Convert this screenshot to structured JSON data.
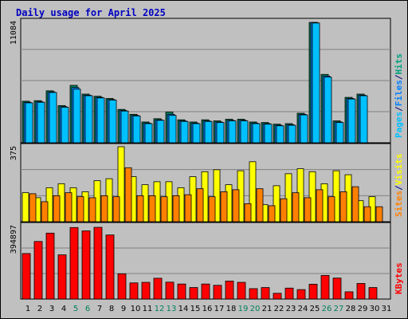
{
  "title": "Daily usage for April 2025",
  "chart_data": [
    {
      "type": "bar",
      "panel": "pages-files-hits",
      "ymax_label": "11084",
      "ylim": [
        0,
        11084
      ],
      "grid": true,
      "legend": [
        {
          "name": "Pages",
          "color": "#00c0ff"
        },
        {
          "name": "/",
          "color": "#000080"
        },
        {
          "name": "Files",
          "color": "#0080ff"
        },
        {
          "name": "/",
          "color": "#000080"
        },
        {
          "name": "Hits",
          "color": "#00a080"
        }
      ],
      "categories": [
        "1",
        "2",
        "3",
        "4",
        "5",
        "6",
        "7",
        "8",
        "9",
        "10",
        "11",
        "12",
        "13",
        "14",
        "15",
        "16",
        "17",
        "18",
        "19",
        "20",
        "21",
        "22",
        "23",
        "24",
        "25",
        "26",
        "27",
        "28",
        "29",
        "30",
        "31"
      ],
      "series": [
        {
          "name": "Hits",
          "color": "#00805c",
          "values": [
            3800,
            3850,
            4750,
            3400,
            5250,
            4450,
            4250,
            4050,
            3050,
            2600,
            1900,
            2200,
            2800,
            2100,
            1900,
            2100,
            2000,
            2150,
            2150,
            1900,
            1850,
            1700,
            1750,
            2700,
            11000,
            6250,
            2000,
            4150,
            4450,
            0,
            0
          ]
        },
        {
          "name": "Files",
          "color": "#0080ff",
          "values": [
            3700,
            3750,
            4650,
            3300,
            5050,
            4350,
            4150,
            3950,
            2950,
            2500,
            1800,
            2100,
            2600,
            2000,
            1800,
            2000,
            1900,
            2050,
            2050,
            1800,
            1750,
            1600,
            1650,
            2600,
            11000,
            6100,
            1900,
            4050,
            4350,
            0,
            0
          ]
        },
        {
          "name": "Pages",
          "color": "#00c0ff",
          "values": [
            3650,
            3700,
            4600,
            3250,
            4900,
            4300,
            4100,
            3900,
            2900,
            2450,
            1750,
            2050,
            2500,
            1950,
            1750,
            1950,
            1850,
            2000,
            2000,
            1750,
            1700,
            1550,
            1600,
            2550,
            10950,
            6000,
            1850,
            4000,
            4300,
            0,
            0
          ]
        }
      ]
    },
    {
      "type": "bar",
      "panel": "visits-sites",
      "ymax_label": "375",
      "ylim": [
        0,
        375
      ],
      "grid": true,
      "legend": [
        {
          "name": "Sites",
          "color": "#ff8000"
        },
        {
          "name": "/",
          "color": "#000080"
        },
        {
          "name": "Visits",
          "color": "#ffff00"
        }
      ],
      "categories": [
        "1",
        "2",
        "3",
        "4",
        "5",
        "6",
        "7",
        "8",
        "9",
        "10",
        "11",
        "12",
        "13",
        "14",
        "15",
        "16",
        "17",
        "18",
        "19",
        "20",
        "21",
        "22",
        "23",
        "24",
        "25",
        "26",
        "27",
        "28",
        "29",
        "30",
        "31"
      ],
      "series": [
        {
          "name": "Visits",
          "color": "#ffff00",
          "values": [
            145,
            120,
            170,
            190,
            170,
            150,
            205,
            215,
            375,
            225,
            185,
            200,
            200,
            170,
            225,
            250,
            260,
            185,
            255,
            300,
            85,
            180,
            240,
            265,
            250,
            190,
            255,
            235,
            105,
            125,
            0
          ]
        },
        {
          "name": "Sites",
          "color": "#ff8000",
          "values": [
            140,
            100,
            130,
            145,
            125,
            120,
            130,
            125,
            270,
            130,
            130,
            125,
            130,
            135,
            165,
            125,
            150,
            160,
            90,
            165,
            80,
            115,
            145,
            120,
            160,
            125,
            150,
            175,
            75,
            75,
            0
          ]
        }
      ]
    },
    {
      "type": "bar",
      "panel": "kbytes",
      "ymax_label": "394897",
      "ylim": [
        0,
        394897
      ],
      "grid": true,
      "legend": [
        {
          "name": "KBytes",
          "color": "#ff0000"
        }
      ],
      "categories": [
        "1",
        "2",
        "3",
        "4",
        "5",
        "6",
        "7",
        "8",
        "9",
        "10",
        "11",
        "12",
        "13",
        "14",
        "15",
        "16",
        "17",
        "18",
        "19",
        "20",
        "21",
        "22",
        "23",
        "24",
        "25",
        "26",
        "27",
        "28",
        "29",
        "30",
        "31"
      ],
      "series": [
        {
          "name": "KBytes",
          "color": "#ff0000",
          "values": [
            245000,
            310000,
            355000,
            238000,
            385000,
            367000,
            386000,
            345000,
            136000,
            87000,
            90000,
            112000,
            91000,
            81000,
            62000,
            81000,
            74000,
            97000,
            90000,
            56000,
            62000,
            31000,
            59000,
            51000,
            80000,
            127000,
            113000,
            39000,
            84000,
            62000,
            0
          ]
        }
      ]
    }
  ],
  "x_labels": [
    {
      "text": "1",
      "color": "#000000"
    },
    {
      "text": "2",
      "color": "#000000"
    },
    {
      "text": "3",
      "color": "#000000"
    },
    {
      "text": "4",
      "color": "#000000"
    },
    {
      "text": "5",
      "color": "#00805c"
    },
    {
      "text": "6",
      "color": "#00805c"
    },
    {
      "text": "7",
      "color": "#000000"
    },
    {
      "text": "8",
      "color": "#000000"
    },
    {
      "text": "9",
      "color": "#000000"
    },
    {
      "text": "10",
      "color": "#000000"
    },
    {
      "text": "11",
      "color": "#000000"
    },
    {
      "text": "12",
      "color": "#00805c"
    },
    {
      "text": "13",
      "color": "#00805c"
    },
    {
      "text": "14",
      "color": "#000000"
    },
    {
      "text": "15",
      "color": "#000000"
    },
    {
      "text": "16",
      "color": "#000000"
    },
    {
      "text": "17",
      "color": "#000000"
    },
    {
      "text": "18",
      "color": "#000000"
    },
    {
      "text": "19",
      "color": "#00805c"
    },
    {
      "text": "20",
      "color": "#00805c"
    },
    {
      "text": "21",
      "color": "#000000"
    },
    {
      "text": "22",
      "color": "#000000"
    },
    {
      "text": "23",
      "color": "#000000"
    },
    {
      "text": "24",
      "color": "#000000"
    },
    {
      "text": "25",
      "color": "#000000"
    },
    {
      "text": "26",
      "color": "#00805c"
    },
    {
      "text": "27",
      "color": "#00805c"
    },
    {
      "text": "28",
      "color": "#000000"
    },
    {
      "text": "29",
      "color": "#000000"
    },
    {
      "text": "30",
      "color": "#000000"
    },
    {
      "text": "31",
      "color": "#000000"
    }
  ]
}
